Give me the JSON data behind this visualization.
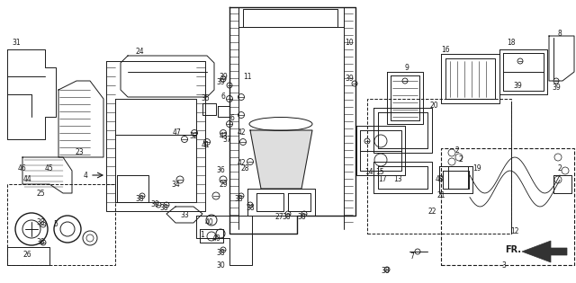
{
  "bg_color": "#ffffff",
  "line_color": "#1a1a1a",
  "fig_width": 6.4,
  "fig_height": 3.15,
  "dpi": 100
}
